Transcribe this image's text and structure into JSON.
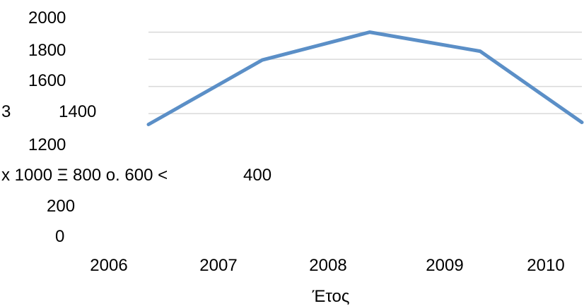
{
  "chart_data": {
    "type": "line",
    "categories": [
      "2006",
      "2007",
      "2008",
      "2009",
      "2010"
    ],
    "series": [
      {
        "values": [
          1270,
          1745,
          1950,
          1810,
          1285
        ]
      }
    ],
    "xlabel": "Έτος",
    "ylim": [
      1200,
      2000
    ],
    "yticks_stacked": [
      "2000",
      "1800",
      "1600",
      "1400",
      "1200",
      "200",
      "0"
    ],
    "ytick_fragments": [
      "3",
      "x 1000 Ξ 800 o. 600 <",
      "400"
    ],
    "grid": true,
    "series_color": "#5b8fc7"
  }
}
